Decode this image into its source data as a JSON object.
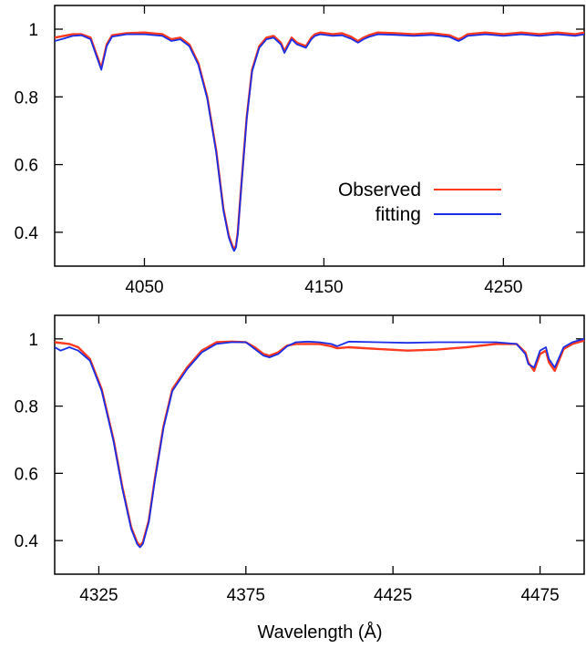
{
  "chart_data": [
    {
      "type": "line",
      "xlabel": "",
      "ylabel": "",
      "xlim": [
        4000,
        4295
      ],
      "ylim": [
        0.3,
        1.07
      ],
      "xticks": [
        4050,
        4150,
        4250
      ],
      "yticks": [
        0.4,
        0.6,
        0.8,
        1
      ],
      "ytick_labels": [
        "0.4",
        "0.6",
        "0.8",
        "1"
      ],
      "legend": {
        "placement": "middle-right",
        "entries": [
          "Observed",
          "fitting"
        ]
      },
      "series": [
        {
          "name": "Observed",
          "color": "#ff3a1f",
          "x": [
            4000,
            4005,
            4010,
            4015,
            4020,
            4023,
            4026,
            4029,
            4032,
            4040,
            4050,
            4060,
            4065,
            4070,
            4075,
            4080,
            4085,
            4090,
            4094,
            4097,
            4099,
            4100,
            4101,
            4102,
            4104,
            4107,
            4110,
            4114,
            4118,
            4122,
            4126,
            4128,
            4130,
            4132,
            4135,
            4140,
            4143,
            4145,
            4148,
            4155,
            4160,
            4165,
            4169,
            4172,
            4175,
            4180,
            4190,
            4200,
            4210,
            4220,
            4225,
            4227,
            4230,
            4240,
            4250,
            4260,
            4270,
            4280,
            4290,
            4295
          ],
          "y": [
            0.975,
            0.98,
            0.985,
            0.985,
            0.975,
            0.93,
            0.885,
            0.955,
            0.982,
            0.988,
            0.99,
            0.985,
            0.97,
            0.975,
            0.955,
            0.9,
            0.8,
            0.64,
            0.47,
            0.39,
            0.36,
            0.35,
            0.36,
            0.4,
            0.54,
            0.74,
            0.88,
            0.95,
            0.975,
            0.98,
            0.96,
            0.935,
            0.955,
            0.975,
            0.96,
            0.95,
            0.975,
            0.985,
            0.99,
            0.985,
            0.988,
            0.978,
            0.965,
            0.975,
            0.982,
            0.99,
            0.988,
            0.985,
            0.988,
            0.982,
            0.97,
            0.975,
            0.985,
            0.99,
            0.985,
            0.99,
            0.985,
            0.99,
            0.985,
            0.99
          ]
        },
        {
          "name": "fitting",
          "color": "#1a2ee6",
          "x": [
            4000,
            4005,
            4010,
            4015,
            4020,
            4023,
            4026,
            4029,
            4032,
            4040,
            4050,
            4060,
            4065,
            4070,
            4075,
            4080,
            4085,
            4090,
            4094,
            4097,
            4099,
            4100,
            4101,
            4102,
            4104,
            4107,
            4110,
            4114,
            4118,
            4122,
            4126,
            4128,
            4130,
            4132,
            4135,
            4140,
            4143,
            4145,
            4148,
            4155,
            4160,
            4165,
            4169,
            4172,
            4175,
            4180,
            4190,
            4200,
            4210,
            4220,
            4225,
            4227,
            4230,
            4240,
            4250,
            4260,
            4270,
            4280,
            4290,
            4295
          ],
          "y": [
            0.965,
            0.972,
            0.98,
            0.982,
            0.97,
            0.925,
            0.88,
            0.95,
            0.978,
            0.985,
            0.985,
            0.98,
            0.965,
            0.97,
            0.95,
            0.895,
            0.795,
            0.635,
            0.465,
            0.385,
            0.355,
            0.345,
            0.355,
            0.395,
            0.535,
            0.735,
            0.875,
            0.945,
            0.97,
            0.975,
            0.955,
            0.93,
            0.95,
            0.97,
            0.955,
            0.945,
            0.97,
            0.98,
            0.985,
            0.98,
            0.982,
            0.972,
            0.96,
            0.97,
            0.977,
            0.985,
            0.983,
            0.98,
            0.983,
            0.977,
            0.965,
            0.97,
            0.98,
            0.985,
            0.98,
            0.985,
            0.98,
            0.985,
            0.98,
            0.985
          ]
        }
      ]
    },
    {
      "type": "line",
      "xlabel": "Wavelength (Å)",
      "ylabel": "",
      "xlim": [
        4310,
        4490
      ],
      "ylim": [
        0.3,
        1.07
      ],
      "xticks": [
        4325,
        4375,
        4425,
        4475
      ],
      "yticks": [
        0.4,
        0.6,
        0.8,
        1
      ],
      "ytick_labels": [
        "0.4",
        "0.6",
        "0.8",
        "1"
      ],
      "series": [
        {
          "name": "Observed",
          "color": "#ff3a1f",
          "x": [
            4310,
            4315,
            4318,
            4322,
            4326,
            4330,
            4333,
            4336,
            4338,
            4339,
            4340,
            4342,
            4344,
            4347,
            4350,
            4355,
            4360,
            4365,
            4370,
            4375,
            4378,
            4381,
            4383,
            4386,
            4389,
            4392,
            4396,
            4400,
            4404,
            4406,
            4410,
            4420,
            4430,
            4440,
            4450,
            4460,
            4467,
            4470,
            4471,
            4473,
            4475,
            4477,
            4478,
            4480,
            4483,
            4486,
            4490
          ],
          "y": [
            0.99,
            0.985,
            0.975,
            0.94,
            0.85,
            0.7,
            0.56,
            0.44,
            0.395,
            0.385,
            0.395,
            0.46,
            0.58,
            0.74,
            0.85,
            0.915,
            0.965,
            0.99,
            0.992,
            0.99,
            0.975,
            0.955,
            0.95,
            0.96,
            0.98,
            0.985,
            0.985,
            0.985,
            0.978,
            0.972,
            0.975,
            0.97,
            0.965,
            0.968,
            0.975,
            0.985,
            0.985,
            0.96,
            0.93,
            0.905,
            0.955,
            0.965,
            0.93,
            0.905,
            0.97,
            0.985,
            0.995
          ]
        },
        {
          "name": "fitting",
          "color": "#1a2ee6",
          "x": [
            4310,
            4312,
            4315,
            4318,
            4322,
            4326,
            4330,
            4333,
            4336,
            4338,
            4339,
            4340,
            4342,
            4344,
            4347,
            4350,
            4355,
            4360,
            4365,
            4370,
            4375,
            4378,
            4381,
            4383,
            4386,
            4389,
            4392,
            4396,
            4400,
            4404,
            4406,
            4410,
            4420,
            4430,
            4440,
            4450,
            4460,
            4467,
            4470,
            4471,
            4473,
            4475,
            4477,
            4478,
            4480,
            4483,
            4486,
            4490
          ],
          "y": [
            0.975,
            0.965,
            0.975,
            0.965,
            0.935,
            0.845,
            0.695,
            0.555,
            0.435,
            0.39,
            0.38,
            0.39,
            0.455,
            0.575,
            0.735,
            0.845,
            0.91,
            0.96,
            0.985,
            0.99,
            0.99,
            0.97,
            0.95,
            0.945,
            0.955,
            0.978,
            0.99,
            0.992,
            0.99,
            0.985,
            0.978,
            0.992,
            0.99,
            0.988,
            0.99,
            0.99,
            0.99,
            0.985,
            0.955,
            0.925,
            0.915,
            0.965,
            0.975,
            0.94,
            0.915,
            0.975,
            0.99,
            1.0
          ]
        }
      ]
    }
  ]
}
